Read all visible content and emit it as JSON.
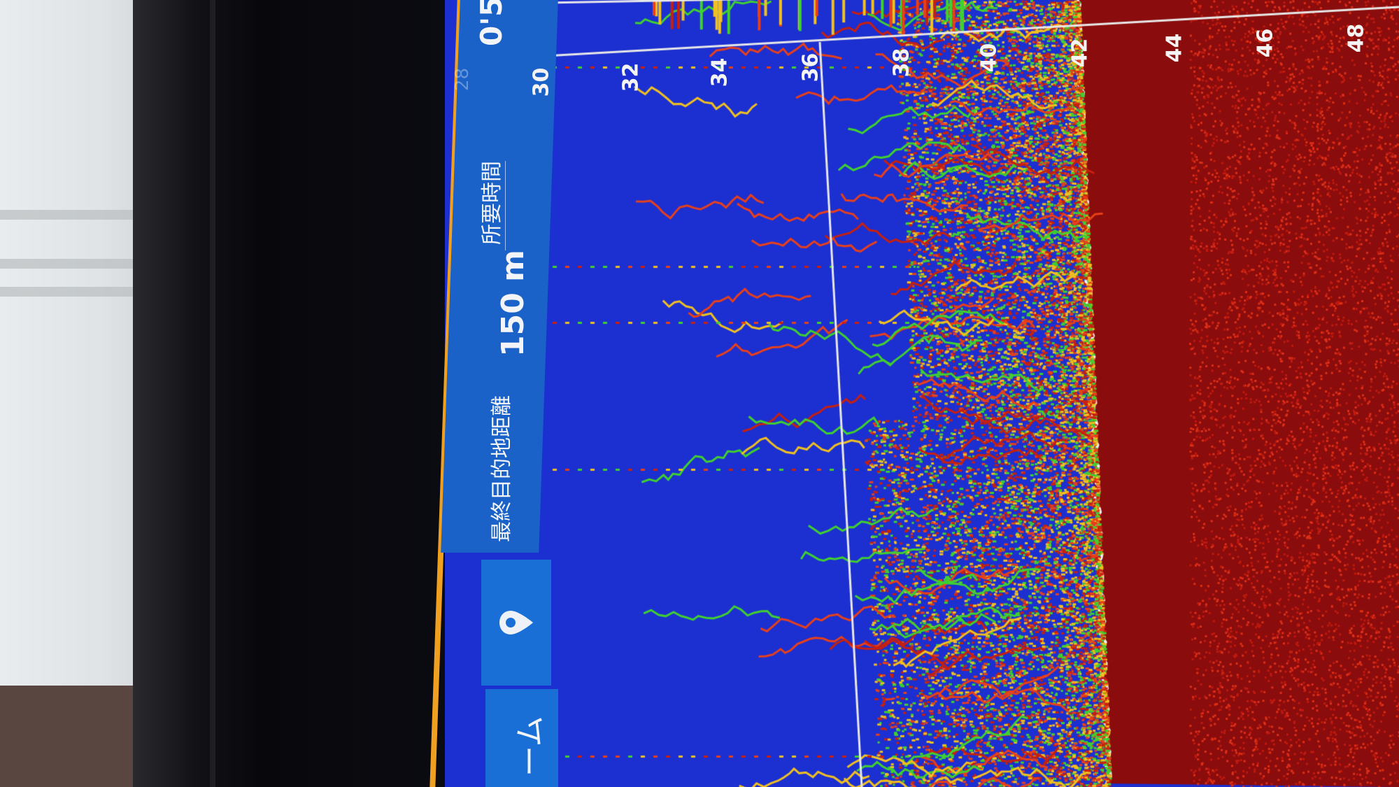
{
  "panel": {
    "destination_label": "最終目的地距離",
    "destination_value": "150 m",
    "time_label": "所要時間",
    "time_value": "0'5",
    "faint_value": "28",
    "home_button_label": "ーム",
    "waypoint_icon": "map-pin-icon"
  },
  "depth_scale": {
    "ticks": [
      "30",
      "32",
      "34",
      "36",
      "38",
      "40",
      "42",
      "44",
      "46",
      "48"
    ]
  },
  "colors": {
    "water": "#1c2fd0",
    "bottom": "#8a0c0c",
    "panel": "#1a62c8",
    "accent_edge": "#f0a020",
    "echo_strong": "#e8401a",
    "echo_mid": "#f0c020",
    "echo_weak": "#40d030"
  }
}
